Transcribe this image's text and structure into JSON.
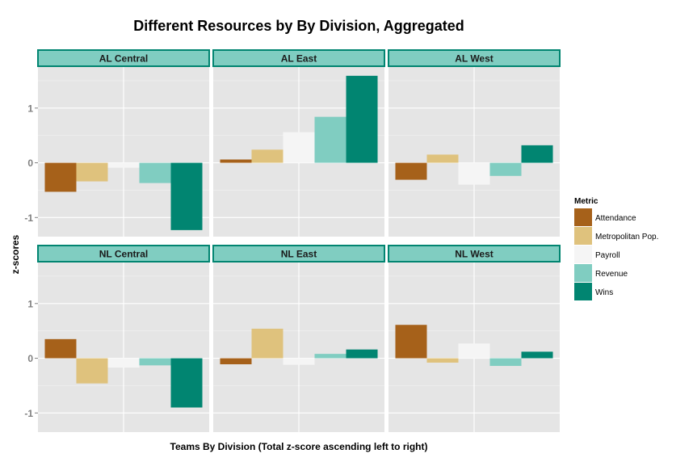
{
  "chart_data": {
    "type": "bar",
    "title": "Different Resources by By Division, Aggregated",
    "xlabel": "Teams By Division (Total z-score ascending left to right)",
    "ylabel": "z-scores",
    "ylim": [
      -1.35,
      1.75
    ],
    "yticks": [
      1,
      0,
      -1
    ],
    "ytick_labels": [
      "1",
      "0",
      "-1"
    ],
    "grid": true,
    "legend": {
      "title": "Metric",
      "position": "right",
      "entries": [
        "Attendance",
        "Metropolitan Pop.",
        "Payroll",
        "Revenue",
        "Wins"
      ]
    },
    "colors": [
      "#a6611a",
      "#dfc27d",
      "#f5f5f5",
      "#80cdc1",
      "#018571"
    ],
    "panels": [
      {
        "name": "AL Central",
        "values": [
          -0.53,
          -0.34,
          -0.09,
          -0.37,
          -1.23
        ]
      },
      {
        "name": "AL East",
        "values": [
          0.06,
          0.24,
          0.56,
          0.84,
          1.59
        ]
      },
      {
        "name": "AL West",
        "values": [
          -0.31,
          0.15,
          -0.4,
          -0.24,
          0.32
        ]
      },
      {
        "name": "NL Central",
        "values": [
          0.35,
          -0.46,
          -0.17,
          -0.13,
          -0.9
        ]
      },
      {
        "name": "NL East",
        "values": [
          -0.11,
          0.54,
          -0.12,
          0.08,
          0.16
        ]
      },
      {
        "name": "NL West",
        "values": [
          0.61,
          -0.08,
          0.27,
          -0.14,
          0.12
        ]
      }
    ]
  }
}
